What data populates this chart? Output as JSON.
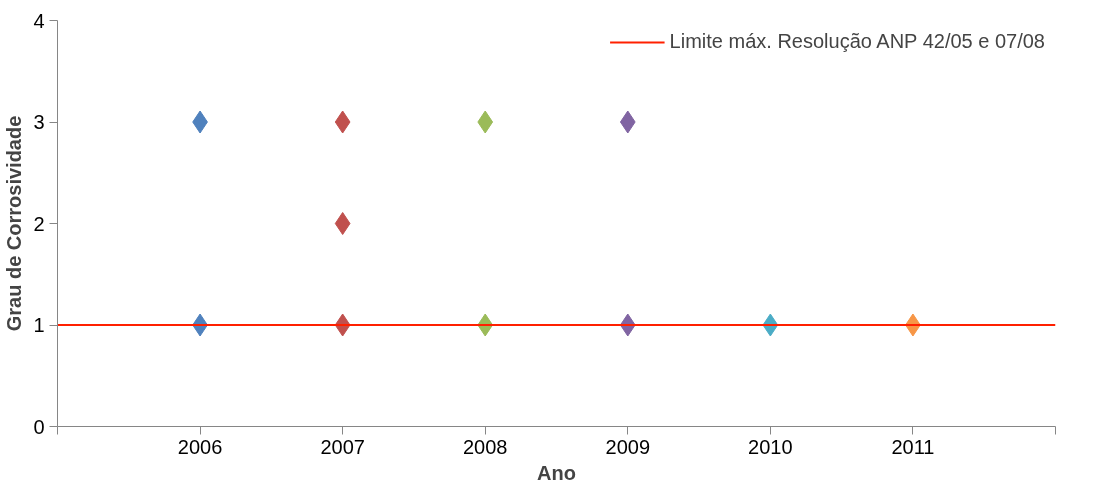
{
  "chart_data": {
    "type": "scatter",
    "xlabel": "Ano",
    "ylabel": "Grau de Corrosividade",
    "xlim": [
      2005,
      2012
    ],
    "xticks": [
      {
        "value": 2005,
        "label": null
      },
      2006,
      2007,
      2008,
      2009,
      2010,
      2011,
      {
        "value": 2012,
        "label": null
      }
    ],
    "ylim": [
      0,
      4
    ],
    "yticks": [
      0,
      1,
      2,
      3,
      4
    ],
    "grid": false,
    "marker": "diamond",
    "legend": "top right",
    "series": [
      {
        "color": "#4f81bd",
        "x": [
          2006,
          2006
        ],
        "values": [
          3,
          1
        ]
      },
      {
        "color": "#c0504d",
        "x": [
          2007,
          2007,
          2007
        ],
        "values": [
          3,
          2,
          1
        ]
      },
      {
        "color": "#9bbb59",
        "x": [
          2008,
          2008
        ],
        "values": [
          3,
          1
        ]
      },
      {
        "color": "#8064a2",
        "x": [
          2009,
          2009
        ],
        "values": [
          3,
          1
        ]
      },
      {
        "color": "#4bacc6",
        "x": [
          2010
        ],
        "values": [
          1
        ]
      },
      {
        "color": "#f79646",
        "x": [
          2011
        ],
        "values": [
          1
        ]
      }
    ],
    "ref_lines": [
      {
        "axis": "y",
        "value": 1,
        "label": "Limite máx. Resolução ANP 42/05 e 07/08",
        "color": "#ff2000"
      }
    ]
  }
}
